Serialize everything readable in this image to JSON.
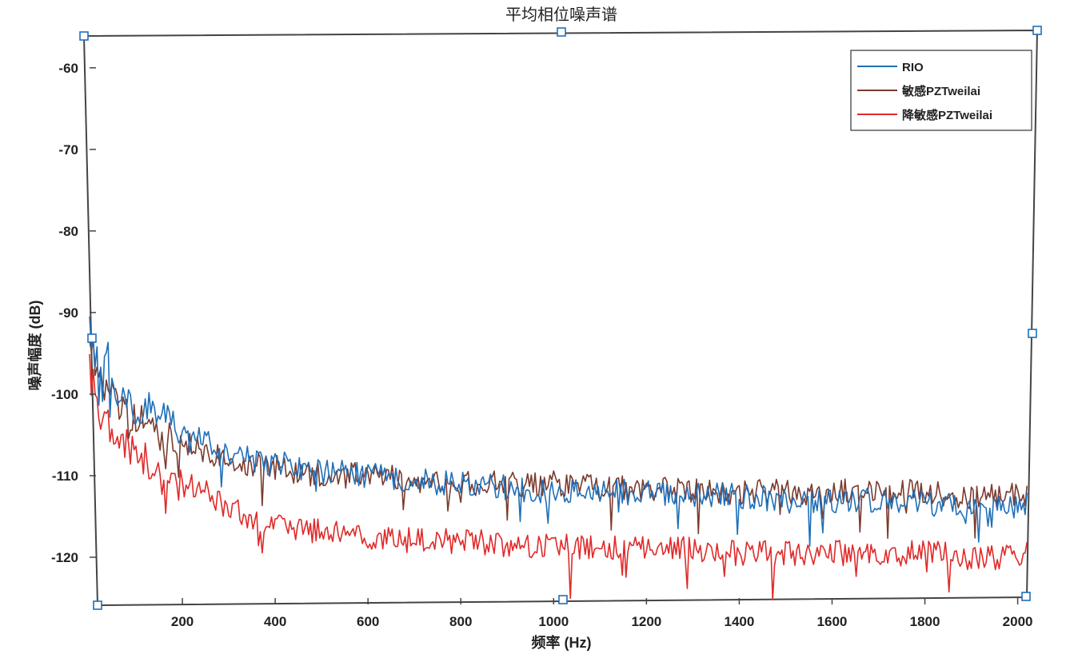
{
  "chart_data": {
    "type": "line",
    "title": "平均相位噪声谱",
    "xlabel": "频率 (Hz)",
    "ylabel": "噪声幅度 (dB)",
    "xlim": [
      0,
      2030
    ],
    "ylim": [
      -125,
      -56
    ],
    "xticks": [
      200,
      400,
      600,
      800,
      1000,
      1200,
      1400,
      1600,
      1800,
      2000
    ],
    "yticks": [
      -60,
      -70,
      -80,
      -90,
      -100,
      -110,
      -120
    ],
    "grid": false,
    "legend_position": "top-right",
    "series": [
      {
        "name": "RIO",
        "color": "#1f6fb8",
        "x": [
          0,
          20,
          40,
          60,
          80,
          100,
          120,
          150,
          200,
          250,
          300,
          350,
          400,
          450,
          500,
          600,
          700,
          800,
          900,
          1000,
          1100,
          1200,
          1300,
          1400,
          1500,
          1600,
          1700,
          1800,
          1900,
          2000,
          2020
        ],
        "y": [
          -92,
          -97,
          -95,
          -101,
          -100,
          -102,
          -101,
          -103,
          -104,
          -106,
          -107,
          -108,
          -108.5,
          -109,
          -109.5,
          -110,
          -110.5,
          -111,
          -111.5,
          -112,
          -112,
          -112,
          -112.5,
          -112.5,
          -113,
          -113,
          -113,
          -113.5,
          -114,
          -114,
          -113
        ]
      },
      {
        "name": "敏感PZTweilai",
        "color": "#7a3b2e",
        "x": [
          0,
          20,
          40,
          60,
          80,
          100,
          120,
          150,
          200,
          250,
          300,
          350,
          400,
          450,
          500,
          600,
          700,
          800,
          900,
          1000,
          1100,
          1200,
          1300,
          1400,
          1500,
          1600,
          1700,
          1800,
          1900,
          2000,
          2020
        ],
        "y": [
          -92,
          -98,
          -99,
          -101,
          -102,
          -103,
          -104,
          -105,
          -106,
          -107,
          -108,
          -108.5,
          -109,
          -109.5,
          -110,
          -110,
          -110.5,
          -111,
          -111,
          -111,
          -111.5,
          -111.5,
          -112,
          -112,
          -112,
          -112,
          -112,
          -112,
          -112.5,
          -112.5,
          -112
        ]
      },
      {
        "name": "降敏感PZTweilai",
        "color": "#e02a2a",
        "x": [
          0,
          20,
          40,
          60,
          80,
          100,
          120,
          150,
          200,
          250,
          300,
          350,
          400,
          450,
          500,
          600,
          700,
          800,
          900,
          1000,
          1100,
          1200,
          1300,
          1400,
          1500,
          1600,
          1700,
          1800,
          1900,
          2000,
          2020
        ],
        "y": [
          -95,
          -101,
          -104,
          -105,
          -106,
          -107,
          -108,
          -110,
          -111,
          -112,
          -114,
          -115,
          -116,
          -116.5,
          -117,
          -117.5,
          -118,
          -118,
          -118.5,
          -118.5,
          -119,
          -119,
          -119,
          -119.5,
          -119.5,
          -119.5,
          -119.5,
          -119.5,
          -120,
          -120,
          -119
        ]
      }
    ]
  }
}
